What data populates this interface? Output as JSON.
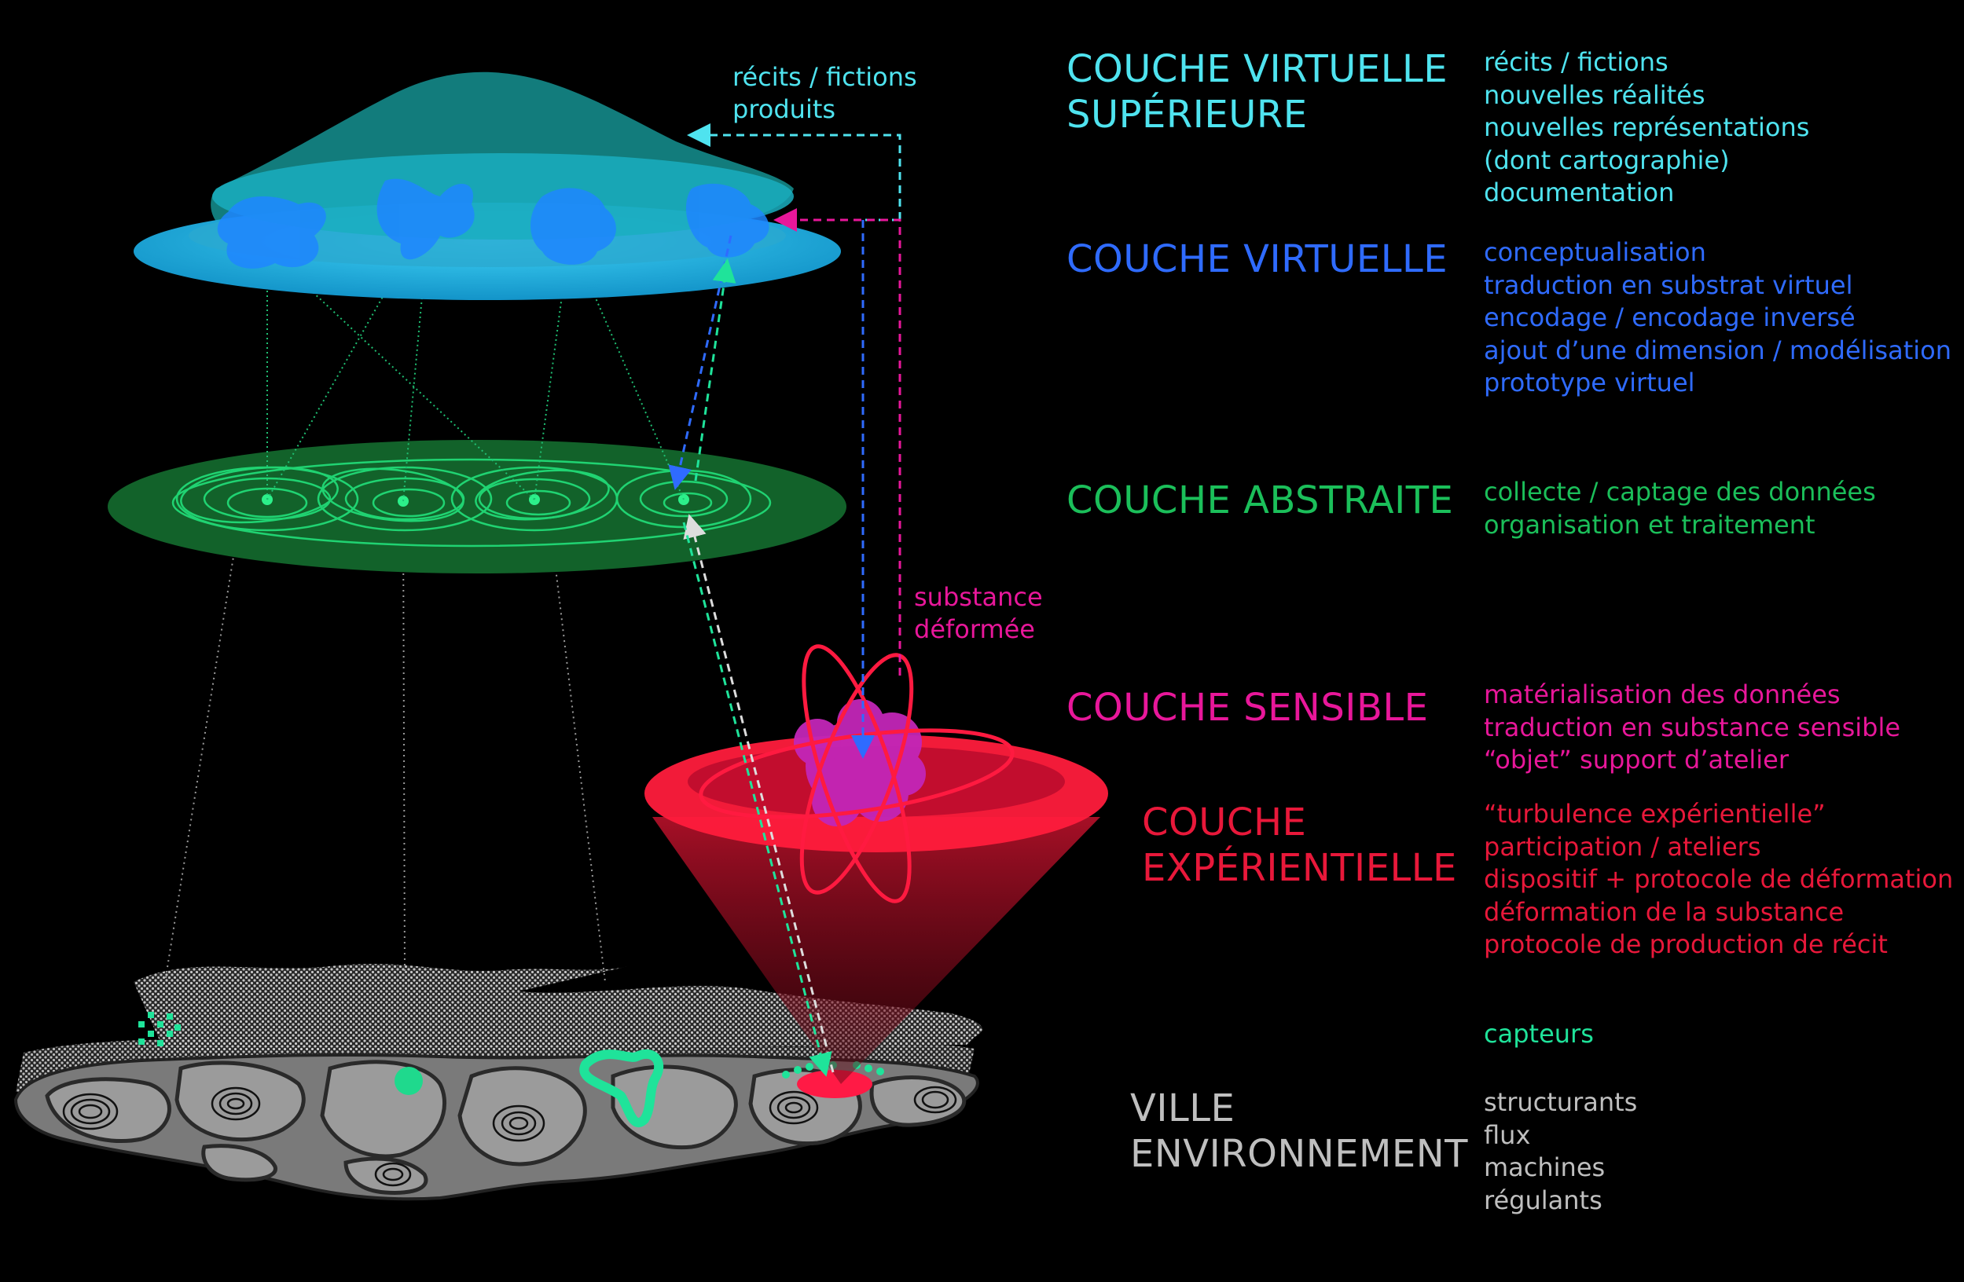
{
  "colors": {
    "cyan": "#4fe3ef",
    "blue": "#2f6bff",
    "green": "#1bbf5a",
    "magenta": "#e8179a",
    "red": "#e8183a",
    "gray": "#bfbfbf",
    "mint": "#1fe39a"
  },
  "diagram_labels": {
    "top_annotation": [
      "récits / fictions",
      "produits"
    ],
    "substance_annotation": [
      "substance",
      "déformée"
    ]
  },
  "layers": [
    {
      "id": "superieure",
      "title": [
        "COUCHE VIRTUELLE",
        "SUPÉRIEURE"
      ],
      "items": [
        "récits / fictions",
        "nouvelles réalités",
        "nouvelles représentations",
        "(dont cartographie)",
        "documentation"
      ]
    },
    {
      "id": "virtuelle",
      "title": [
        "COUCHE VIRTUELLE"
      ],
      "items": [
        "conceptualisation",
        "traduction en substrat virtuel",
        "encodage / encodage inversé",
        "ajout d’une dimension / modélisation",
        "prototype virtuel"
      ]
    },
    {
      "id": "abstraite",
      "title": [
        "COUCHE ABSTRAITE"
      ],
      "items": [
        "collecte / captage des données",
        "organisation et traitement"
      ]
    },
    {
      "id": "sensible",
      "title": [
        "COUCHE SENSIBLE"
      ],
      "items": [
        "matérialisation des données",
        "traduction en substance sensible",
        "“objet” support d’atelier"
      ]
    },
    {
      "id": "experientielle",
      "title": [
        "COUCHE",
        "EXPÉRIENTIELLE"
      ],
      "items": [
        "“turbulence expérientielle”",
        "participation / ateliers",
        "dispositif + protocole de déformation",
        "déformation de la substance",
        "protocole de production de récit"
      ]
    },
    {
      "id": "capteurs",
      "title": [],
      "items": [
        "capteurs"
      ]
    },
    {
      "id": "ville",
      "title": [
        "VILLE",
        "ENVIRONNEMENT"
      ],
      "items": [
        "structurants",
        "flux",
        "machines",
        "régulants"
      ]
    }
  ]
}
